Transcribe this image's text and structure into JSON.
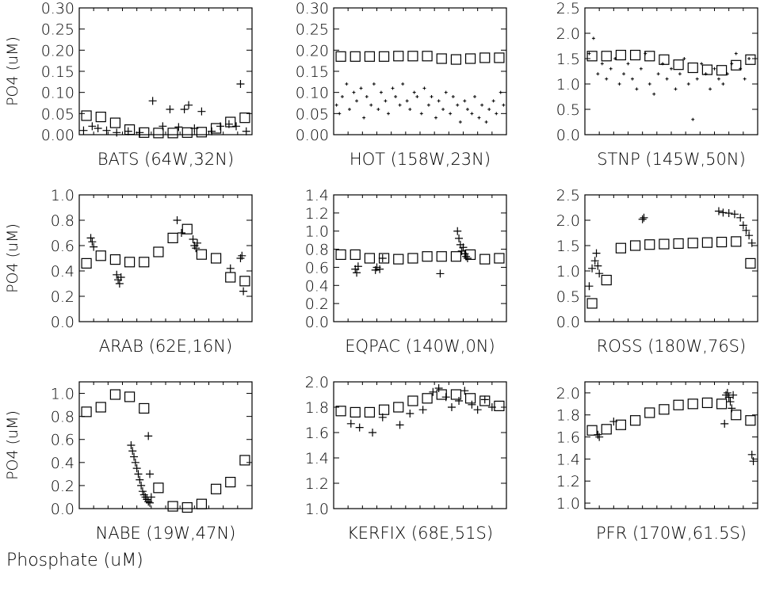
{
  "figure_caption": "Phosphate (uM)",
  "chart_data": [
    {
      "type": "scatter",
      "title": "BATS (64W,32N)",
      "ylabel": "PO4 (uM)",
      "xlim": [
        0,
        12
      ],
      "ylim": [
        0,
        0.3
      ],
      "yticks": [
        "0.00",
        "0.05",
        "0.10",
        "0.15",
        "0.20",
        "0.25",
        "0.30"
      ],
      "series": [
        {
          "marker": "square",
          "x": [
            0.5,
            1.5,
            2.5,
            3.5,
            4.5,
            5.5,
            6.5,
            7.5,
            8.5,
            9.5,
            10.5,
            11.5
          ],
          "values": [
            0.045,
            0.042,
            0.028,
            0.012,
            0.005,
            0.004,
            0.004,
            0.005,
            0.006,
            0.015,
            0.03,
            0.04
          ]
        },
        {
          "marker": "plus",
          "x": [
            0.3,
            0.9,
            1.3,
            1.9,
            2.6,
            3.4,
            4.2,
            5.1,
            5.8,
            6.3,
            6.9,
            7.3,
            7.6,
            8.0,
            8.5,
            9.2,
            9.8,
            10.4,
            10.9,
            11.2,
            11.6
          ],
          "values": [
            0.01,
            0.02,
            0.015,
            0.01,
            0.005,
            0.008,
            0.005,
            0.08,
            0.02,
            0.06,
            0.018,
            0.06,
            0.07,
            0.015,
            0.055,
            0.008,
            0.02,
            0.025,
            0.02,
            0.12,
            0.008
          ]
        }
      ]
    },
    {
      "type": "scatter",
      "title": "HOT (158W,23N)",
      "ylabel": "",
      "xlim": [
        0,
        12
      ],
      "ylim": [
        0,
        0.3
      ],
      "yticks": [
        "0.00",
        "0.05",
        "0.10",
        "0.15",
        "0.20",
        "0.25",
        "0.30"
      ],
      "series": [
        {
          "marker": "square",
          "x": [
            0.5,
            1.5,
            2.5,
            3.5,
            4.5,
            5.5,
            6.5,
            7.5,
            8.5,
            9.5,
            10.5,
            11.5
          ],
          "values": [
            0.185,
            0.185,
            0.185,
            0.185,
            0.186,
            0.186,
            0.186,
            0.18,
            0.178,
            0.18,
            0.182,
            0.182
          ]
        },
        {
          "marker": "dot",
          "x": [
            0.2,
            0.4,
            0.6,
            0.9,
            1.1,
            1.4,
            1.6,
            1.9,
            2.1,
            2.3,
            2.6,
            2.8,
            3.1,
            3.3,
            3.6,
            3.8,
            4.1,
            4.3,
            4.6,
            4.8,
            5.1,
            5.3,
            5.6,
            5.8,
            6.1,
            6.3,
            6.6,
            6.8,
            7.1,
            7.3,
            7.6,
            7.8,
            8.1,
            8.3,
            8.6,
            8.8,
            9.1,
            9.3,
            9.6,
            9.8,
            10.1,
            10.3,
            10.6,
            10.8,
            11.1,
            11.3,
            11.6,
            11.8
          ],
          "values": [
            0.07,
            0.05,
            0.09,
            0.12,
            0.06,
            0.1,
            0.08,
            0.11,
            0.04,
            0.09,
            0.07,
            0.12,
            0.06,
            0.1,
            0.08,
            0.05,
            0.11,
            0.09,
            0.07,
            0.12,
            0.08,
            0.06,
            0.1,
            0.09,
            0.05,
            0.11,
            0.07,
            0.09,
            0.04,
            0.08,
            0.06,
            0.1,
            0.05,
            0.09,
            0.07,
            0.03,
            0.08,
            0.06,
            0.05,
            0.09,
            0.04,
            0.07,
            0.03,
            0.06,
            0.08,
            0.05,
            0.1,
            0.07
          ]
        }
      ]
    },
    {
      "type": "scatter",
      "title": "STNP (145W,50N)",
      "ylabel": "",
      "xlim": [
        0,
        12
      ],
      "ylim": [
        0,
        2.5
      ],
      "yticks": [
        "0.0",
        "0.5",
        "1.0",
        "1.5",
        "2.0",
        "2.5"
      ],
      "series": [
        {
          "marker": "square",
          "x": [
            0.5,
            1.5,
            2.5,
            3.5,
            4.5,
            5.5,
            6.5,
            7.5,
            8.5,
            9.5,
            10.5,
            11.5
          ],
          "values": [
            1.55,
            1.55,
            1.57,
            1.57,
            1.55,
            1.48,
            1.38,
            1.32,
            1.28,
            1.27,
            1.37,
            1.48
          ]
        },
        {
          "marker": "dot",
          "x": [
            0.3,
            0.6,
            0.9,
            1.2,
            1.5,
            1.8,
            2.1,
            2.4,
            2.7,
            3.0,
            3.3,
            3.6,
            3.9,
            4.2,
            4.5,
            4.8,
            5.1,
            5.4,
            5.7,
            6.0,
            6.3,
            6.6,
            6.9,
            7.2,
            7.5,
            7.8,
            8.1,
            8.4,
            8.7,
            9.0,
            9.3,
            9.6,
            9.9,
            10.2,
            10.5,
            10.8,
            11.1,
            11.4
          ],
          "values": [
            1.6,
            1.9,
            1.2,
            1.4,
            1.1,
            1.3,
            1.5,
            1.0,
            1.2,
            1.4,
            1.1,
            0.9,
            1.3,
            1.6,
            1.0,
            0.8,
            1.2,
            1.4,
            1.1,
            1.3,
            0.9,
            1.2,
            1.5,
            1.0,
            0.3,
            1.1,
            1.4,
            1.2,
            0.9,
            1.3,
            1.1,
            1.0,
            1.2,
            1.4,
            1.6,
            1.3,
            1.1,
            1.5
          ]
        }
      ]
    },
    {
      "type": "scatter",
      "title": "ARAB (62E,16N)",
      "ylabel": "PO4 (uM)",
      "xlim": [
        0,
        12
      ],
      "ylim": [
        0,
        1.0
      ],
      "yticks": [
        "0.0",
        "0.2",
        "0.4",
        "0.6",
        "0.8",
        "1.0"
      ],
      "series": [
        {
          "marker": "square",
          "x": [
            0.5,
            1.5,
            2.5,
            3.5,
            4.5,
            5.5,
            6.5,
            7.5,
            8.5,
            9.5,
            10.5,
            11.5
          ],
          "values": [
            0.46,
            0.52,
            0.49,
            0.47,
            0.47,
            0.55,
            0.66,
            0.73,
            0.53,
            0.5,
            0.35,
            0.32
          ]
        },
        {
          "marker": "plus",
          "x": [
            0.8,
            0.9,
            1.0,
            2.6,
            2.7,
            2.8,
            2.9,
            6.8,
            7.1,
            7.9,
            8.0,
            8.1,
            8.2,
            10.5,
            11.2,
            11.3,
            11.4
          ],
          "values": [
            0.66,
            0.63,
            0.59,
            0.37,
            0.33,
            0.3,
            0.35,
            0.8,
            0.7,
            0.65,
            0.6,
            0.58,
            0.62,
            0.42,
            0.5,
            0.52,
            0.24
          ]
        }
      ]
    },
    {
      "type": "scatter",
      "title": "EQPAC (140W,0N)",
      "ylabel": "",
      "xlim": [
        0,
        12
      ],
      "ylim": [
        0,
        1.4
      ],
      "yticks": [
        "0.0",
        "0.2",
        "0.4",
        "0.6",
        "0.8",
        "1.0",
        "1.2",
        "1.4"
      ],
      "series": [
        {
          "marker": "square",
          "x": [
            0.5,
            1.5,
            2.5,
            3.5,
            4.5,
            5.5,
            6.5,
            7.5,
            8.5,
            9.5,
            10.5,
            11.5
          ],
          "values": [
            0.74,
            0.74,
            0.7,
            0.7,
            0.69,
            0.7,
            0.72,
            0.72,
            0.72,
            0.74,
            0.69,
            0.7
          ]
        },
        {
          "marker": "plus",
          "x": [
            1.5,
            1.6,
            1.7,
            2.9,
            3.0,
            3.2,
            3.4,
            7.4,
            8.6,
            8.7,
            8.8,
            8.9,
            9.0,
            9.1,
            9.2,
            9.3
          ],
          "values": [
            0.58,
            0.54,
            0.61,
            0.57,
            0.6,
            0.58,
            0.7,
            0.53,
            1.0,
            0.92,
            0.85,
            0.78,
            0.82,
            0.75,
            0.72,
            0.7
          ]
        }
      ]
    },
    {
      "type": "scatter",
      "title": "ROSS (180W,76S)",
      "ylabel": "",
      "xlim": [
        0,
        12
      ],
      "ylim": [
        0,
        2.5
      ],
      "yticks": [
        "0.0",
        "0.5",
        "1.0",
        "1.5",
        "2.0",
        "2.5"
      ],
      "series": [
        {
          "marker": "square",
          "x": [
            0.5,
            1.5,
            2.5,
            3.5,
            4.5,
            5.5,
            6.5,
            7.5,
            8.5,
            9.5,
            10.5,
            11.5
          ],
          "values": [
            0.36,
            0.82,
            1.45,
            1.5,
            1.52,
            1.53,
            1.54,
            1.55,
            1.56,
            1.57,
            1.58,
            1.15
          ]
        },
        {
          "marker": "plus",
          "x": [
            0.3,
            0.5,
            0.7,
            0.8,
            0.9,
            1.0,
            4.0,
            4.1,
            9.3,
            9.6,
            10.0,
            10.4,
            10.8,
            11.0,
            11.2,
            11.4,
            11.6
          ],
          "values": [
            0.7,
            1.05,
            1.2,
            1.35,
            1.1,
            0.95,
            2.02,
            2.05,
            2.18,
            2.15,
            2.14,
            2.12,
            2.05,
            1.9,
            1.8,
            1.7,
            1.55
          ]
        }
      ]
    },
    {
      "type": "scatter",
      "title": "NABE (19W,47N)",
      "ylabel": "PO4 (uM)",
      "xlim": [
        0,
        12
      ],
      "ylim": [
        0,
        1.1
      ],
      "yticks": [
        "0.0",
        "0.2",
        "0.4",
        "0.6",
        "0.8",
        "1.0"
      ],
      "series": [
        {
          "marker": "square",
          "x": [
            0.5,
            1.5,
            2.5,
            3.5,
            4.5,
            5.5,
            6.5,
            7.5,
            8.5,
            9.5,
            10.5,
            11.5
          ],
          "values": [
            0.84,
            0.88,
            0.99,
            0.97,
            0.87,
            0.18,
            0.02,
            0.01,
            0.04,
            0.17,
            0.23,
            0.42
          ]
        },
        {
          "marker": "plus",
          "x": [
            3.6,
            3.7,
            3.8,
            3.9,
            4.0,
            4.1,
            4.2,
            4.3,
            4.4,
            4.5,
            4.6,
            4.7,
            4.8,
            4.9,
            5.0,
            4.8,
            4.9
          ],
          "values": [
            0.55,
            0.5,
            0.45,
            0.4,
            0.35,
            0.3,
            0.25,
            0.2,
            0.15,
            0.12,
            0.1,
            0.08,
            0.06,
            0.05,
            0.1,
            0.63,
            0.3
          ]
        }
      ]
    },
    {
      "type": "scatter",
      "title": "KERFIX (68E,51S)",
      "ylabel": "",
      "xlim": [
        0,
        12
      ],
      "ylim": [
        1.0,
        2.0
      ],
      "yticks": [
        "1.0",
        "1.2",
        "1.4",
        "1.6",
        "1.8",
        "2.0"
      ],
      "series": [
        {
          "marker": "square",
          "x": [
            0.5,
            1.5,
            2.5,
            3.5,
            4.5,
            5.5,
            6.5,
            7.5,
            8.5,
            9.5,
            10.5,
            11.5
          ],
          "values": [
            1.77,
            1.76,
            1.76,
            1.78,
            1.8,
            1.85,
            1.87,
            1.9,
            1.9,
            1.87,
            1.85,
            1.81
          ]
        },
        {
          "marker": "plus",
          "x": [
            1.2,
            1.8,
            2.7,
            3.4,
            4.6,
            5.3,
            6.2,
            6.9,
            7.3,
            7.8,
            8.2,
            8.7,
            9.1,
            9.6,
            10.0,
            10.5,
            11.0
          ],
          "values": [
            1.67,
            1.64,
            1.6,
            1.72,
            1.66,
            1.75,
            1.78,
            1.92,
            1.95,
            1.88,
            1.8,
            1.85,
            1.93,
            1.82,
            1.78,
            1.86,
            1.8
          ]
        }
      ]
    },
    {
      "type": "scatter",
      "title": "PFR (170W,61.5S)",
      "ylabel": "",
      "xlim": [
        0,
        12
      ],
      "ylim": [
        0.95,
        2.1
      ],
      "yticks": [
        "1.0",
        "1.2",
        "1.4",
        "1.6",
        "1.8",
        "2.0"
      ],
      "series": [
        {
          "marker": "square",
          "x": [
            0.5,
            1.5,
            2.5,
            3.5,
            4.5,
            5.5,
            6.5,
            7.5,
            8.5,
            9.5,
            10.5,
            11.5
          ],
          "values": [
            1.66,
            1.67,
            1.71,
            1.75,
            1.82,
            1.85,
            1.89,
            1.9,
            1.91,
            1.9,
            1.8,
            1.75
          ]
        },
        {
          "marker": "plus",
          "x": [
            0.9,
            1.0,
            2.0,
            9.7,
            9.8,
            9.9,
            10.0,
            10.1,
            10.2,
            10.3,
            11.6,
            11.7
          ],
          "values": [
            1.62,
            1.6,
            1.74,
            1.72,
            1.98,
            2.0,
            1.96,
            1.92,
            1.86,
            1.98,
            1.44,
            1.38
          ]
        }
      ]
    }
  ]
}
